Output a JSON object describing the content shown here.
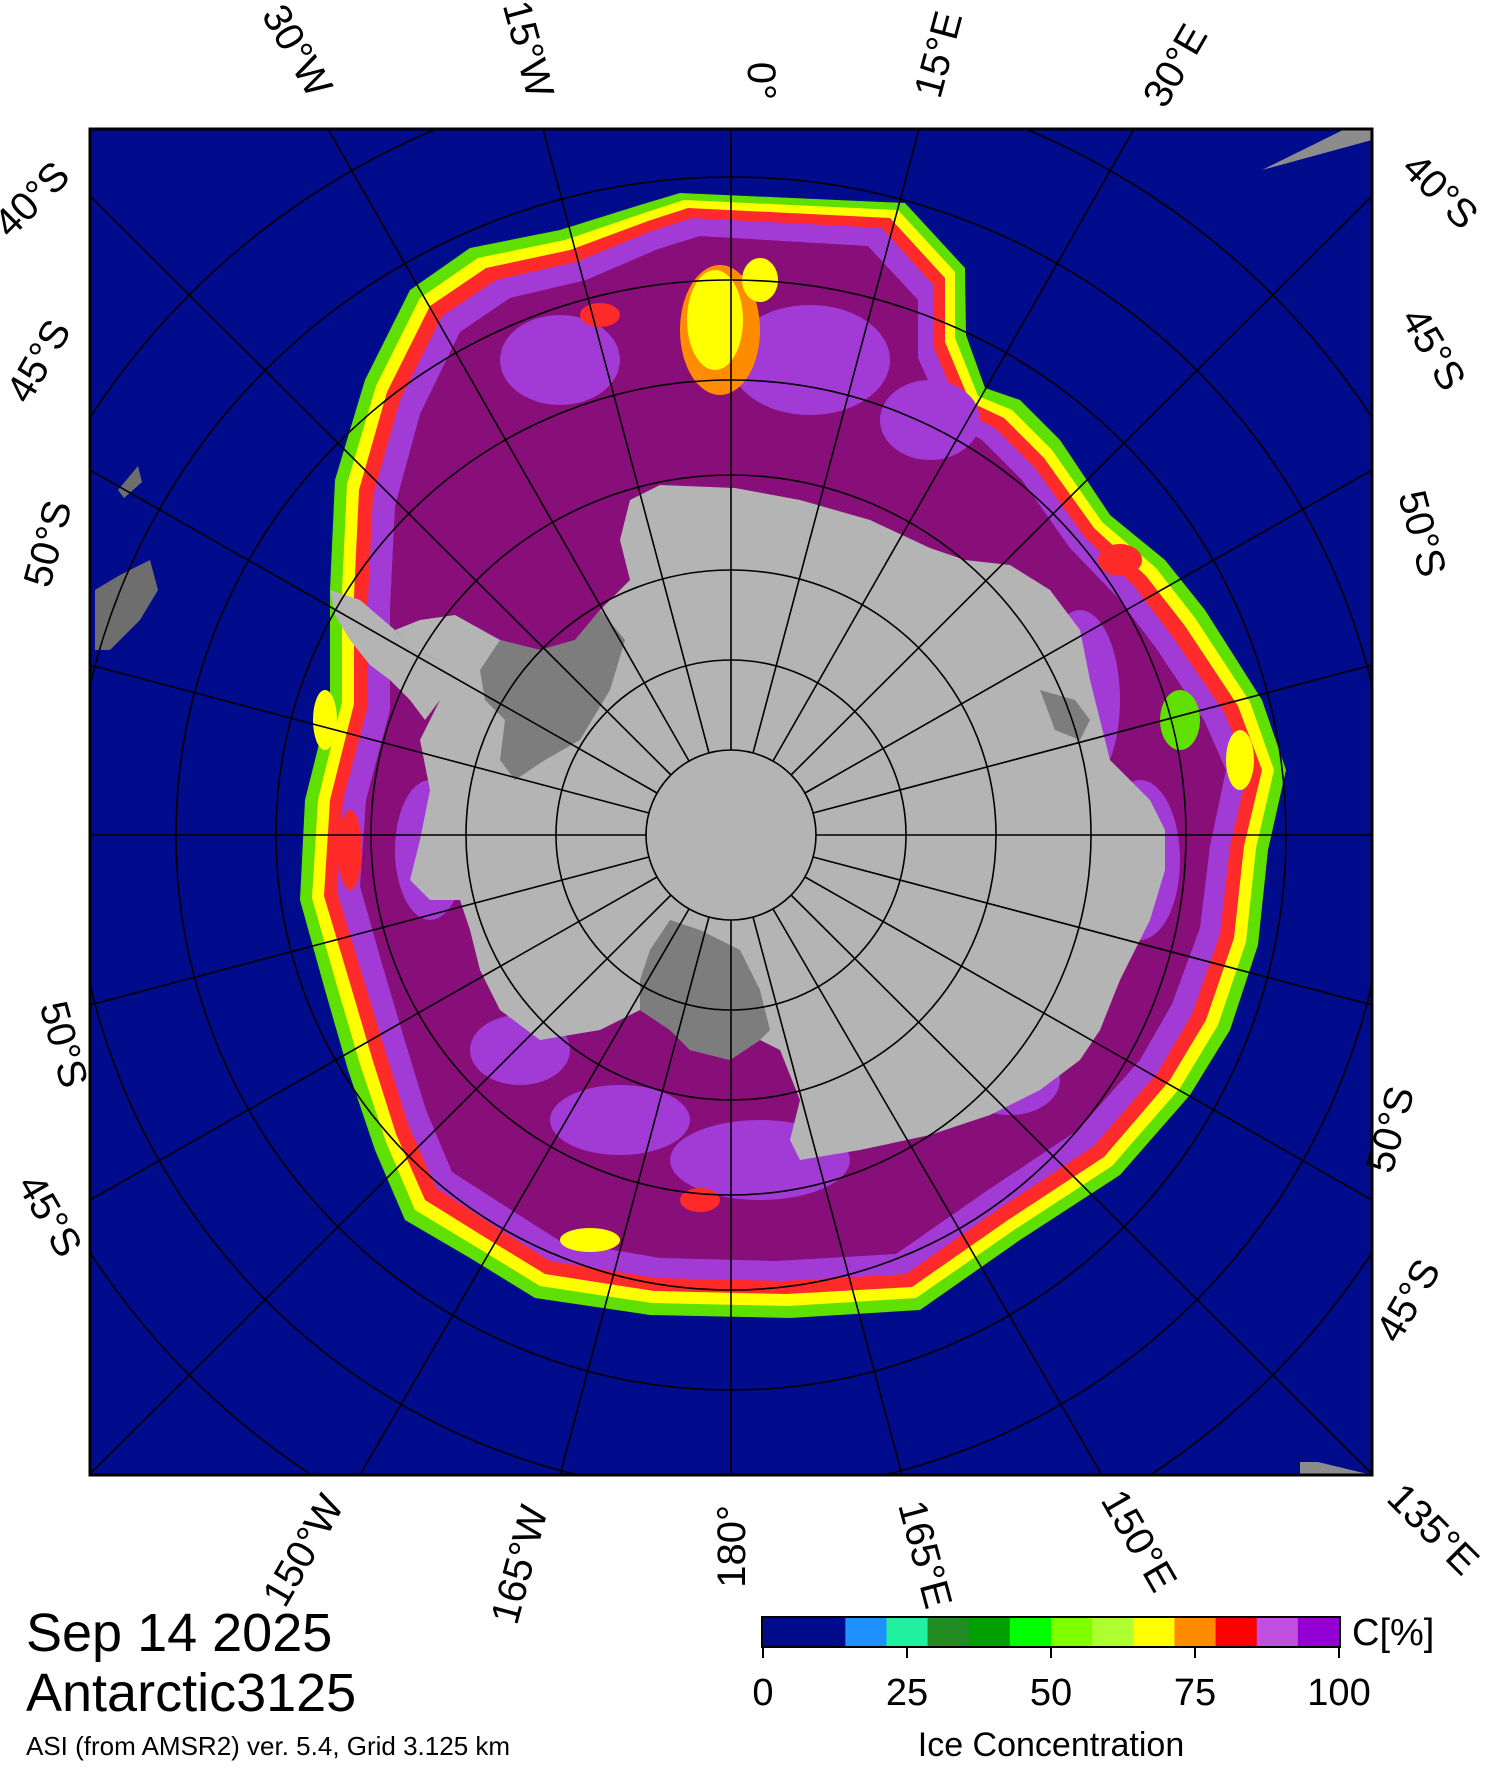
{
  "map": {
    "meridian_labels_top": [
      "30°W",
      "15°W",
      "0°",
      "15°E",
      "30°E"
    ],
    "meridian_labels_bottom": [
      "150°W",
      "165°W",
      "180°",
      "165°E",
      "150°E",
      "135°E"
    ],
    "latitude_labels_left": [
      "40°S",
      "45°S",
      "50°S",
      "50°S",
      "45°S"
    ],
    "latitude_labels_right": [
      "40°S",
      "45°S",
      "50°S",
      "50°S",
      "45°S"
    ],
    "colors": {
      "ocean": "#000c8c",
      "land": "#b4b4b4",
      "ice_shelf": "#7d7d7d",
      "ice_high": "#880e7a",
      "ice_mid": "#a23bd6",
      "ice_edge_yellow": "#ffff00",
      "ice_edge_red": "#ff2020",
      "ice_edge_green": "#5fe000"
    }
  },
  "footer": {
    "date": "Sep 14 2025",
    "product": "Antarctic3125",
    "source": "ASI (from AMSR2) ver. 5.4,  Grid 3.125 km"
  },
  "colorbar": {
    "unit": "C[%]",
    "title": "Ice Concentration",
    "ticks": [
      "0",
      "25",
      "50",
      "75",
      "100"
    ],
    "colors": [
      "#000c8c",
      "#000c8c",
      "#1e90ff",
      "#20f0a0",
      "#228b22",
      "#00a000",
      "#00ff00",
      "#7fff00",
      "#adff2f",
      "#ffff00",
      "#ff8c00",
      "#ff0000",
      "#c050e0",
      "#9400d3"
    ]
  }
}
